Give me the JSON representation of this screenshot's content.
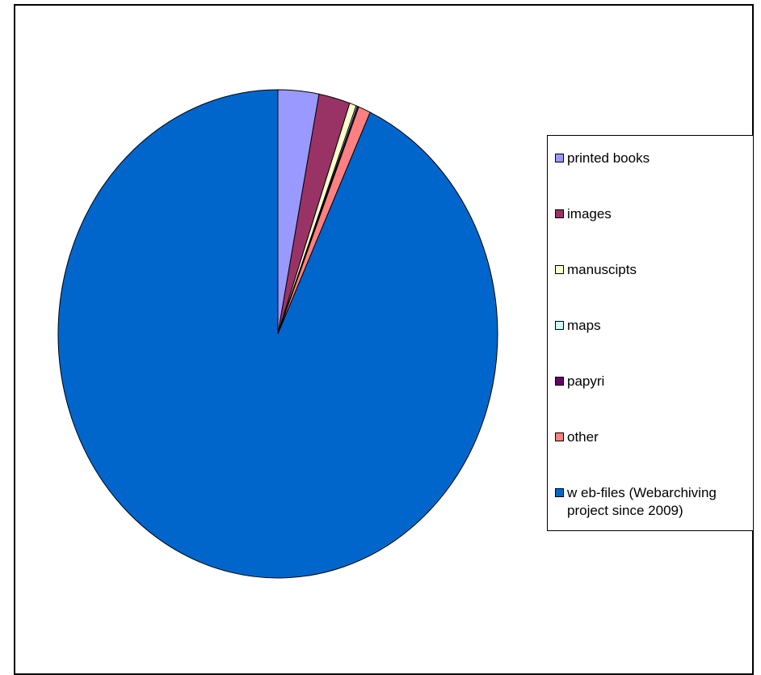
{
  "chart_data": {
    "type": "pie",
    "title": "",
    "start_angle_deg": 0,
    "direction": "clockwise",
    "slices": [
      {
        "label": "printed books",
        "value": 3.0,
        "color": "#9999ff"
      },
      {
        "label": "images",
        "value": 2.3,
        "color": "#993366"
      },
      {
        "label": "manuscipts",
        "value": 0.5,
        "color": "#ffffcc"
      },
      {
        "label": "maps",
        "value": 0.1,
        "color": "#ccffff"
      },
      {
        "label": "papyri",
        "value": 0.1,
        "color": "#660066"
      },
      {
        "label": "other",
        "value": 0.9,
        "color": "#ff8080"
      },
      {
        "label": "w eb-files (Webarchiving\nproject since 2009)",
        "value": 93.1,
        "color": "#0066cc"
      }
    ],
    "legend_position": "right"
  }
}
